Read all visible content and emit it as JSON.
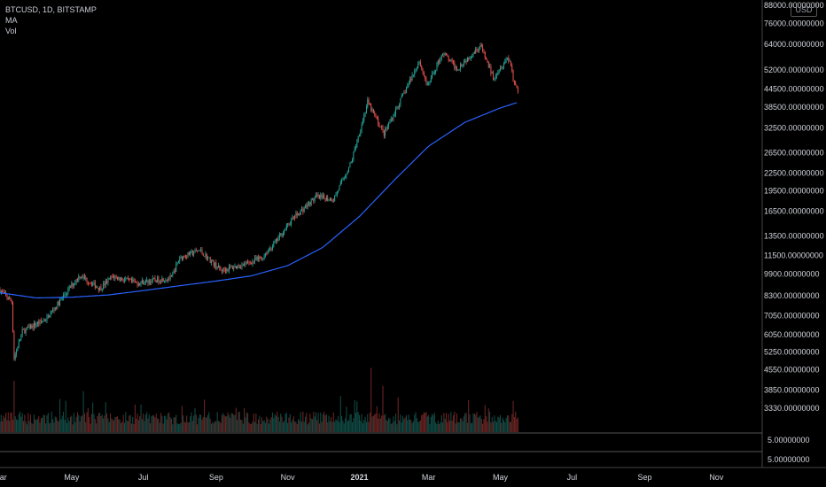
{
  "legend": {
    "symbol_line": "BTCUSD, 1D, BITSTAMP",
    "ma_label": "MA",
    "vol_label": "Vol"
  },
  "currency_badge": "USD",
  "colors": {
    "background": "#000000",
    "up": "#26a69a",
    "down": "#ef5350",
    "ma_line": "#2962ff",
    "axis_text": "#d1d4dc"
  },
  "chart_data": {
    "type": "candlestick",
    "title": "",
    "scale": "log",
    "y_ticks": [
      "88000.00000000",
      "76000.00000000",
      "64000.00000000",
      "52000.00000000",
      "44500.00000000",
      "38500.00000000",
      "32500.00000000",
      "26500.00000000",
      "22500.00000000",
      "19500.00000000",
      "16500.00000000",
      "13500.00000000",
      "11500.00000000",
      "9900.00000000",
      "8300.00000000",
      "7050.00000000",
      "6050.00000000",
      "5250.00000000",
      "4550.00000000",
      "3850.00000000",
      "3330.00000000"
    ],
    "y_range": [
      3050,
      88000
    ],
    "x_ticks": [
      "Mar",
      "May",
      "Jul",
      "Sep",
      "Nov",
      "2021",
      "Mar",
      "May",
      "Jul",
      "Sep",
      "Nov"
    ],
    "x_range": [
      "2020-03-01",
      "2021-12-10"
    ],
    "price_anchors": [
      [
        "2020-03-01",
        8700
      ],
      [
        "2020-03-11",
        7900
      ],
      [
        "2020-03-13",
        5000
      ],
      [
        "2020-03-20",
        6200
      ],
      [
        "2020-04-10",
        6900
      ],
      [
        "2020-04-29",
        8800
      ],
      [
        "2020-05-08",
        9800
      ],
      [
        "2020-05-25",
        8800
      ],
      [
        "2020-06-05",
        9700
      ],
      [
        "2020-06-25",
        9200
      ],
      [
        "2020-07-25",
        9600
      ],
      [
        "2020-08-01",
        11300
      ],
      [
        "2020-08-18",
        12000
      ],
      [
        "2020-09-05",
        10200
      ],
      [
        "2020-09-25",
        10700
      ],
      [
        "2020-10-10",
        11300
      ],
      [
        "2020-10-22",
        12900
      ],
      [
        "2020-11-05",
        15500
      ],
      [
        "2020-11-25",
        18500
      ],
      [
        "2020-12-10",
        18200
      ],
      [
        "2020-12-25",
        24500
      ],
      [
        "2021-01-08",
        40000
      ],
      [
        "2021-01-22",
        31000
      ],
      [
        "2021-02-08",
        43000
      ],
      [
        "2021-02-21",
        56000
      ],
      [
        "2021-02-28",
        45500
      ],
      [
        "2021-03-13",
        60000
      ],
      [
        "2021-03-25",
        52500
      ],
      [
        "2021-04-14",
        63500
      ],
      [
        "2021-04-25",
        49000
      ],
      [
        "2021-05-07",
        57500
      ],
      [
        "2021-05-10",
        55000
      ],
      [
        "2021-05-12",
        48000
      ],
      [
        "2021-05-16",
        44000
      ]
    ],
    "ma_series": {
      "name": "MA",
      "points": [
        [
          "2020-03-01",
          8500
        ],
        [
          "2020-04-01",
          8150
        ],
        [
          "2020-05-01",
          8200
        ],
        [
          "2020-06-01",
          8350
        ],
        [
          "2020-07-01",
          8650
        ],
        [
          "2020-08-01",
          9000
        ],
        [
          "2020-09-01",
          9350
        ],
        [
          "2020-10-01",
          9750
        ],
        [
          "2020-11-01",
          10600
        ],
        [
          "2020-12-01",
          12300
        ],
        [
          "2021-01-01",
          15800
        ],
        [
          "2021-02-01",
          21500
        ],
        [
          "2021-03-01",
          28000
        ],
        [
          "2021-04-01",
          34000
        ],
        [
          "2021-05-01",
          38200
        ],
        [
          "2021-05-16",
          40000
        ]
      ]
    },
    "volume_series": {
      "name": "Vol",
      "spikes": [
        [
          "2020-03-13",
          1.0
        ],
        [
          "2021-01-11",
          1.25
        ],
        [
          "2021-01-21",
          0.9
        ],
        [
          "2020-05-11",
          0.8
        ]
      ]
    },
    "indicator_panes": [
      {
        "axis_label": "5.00000000"
      },
      {
        "axis_label": "5.00000000"
      }
    ]
  }
}
